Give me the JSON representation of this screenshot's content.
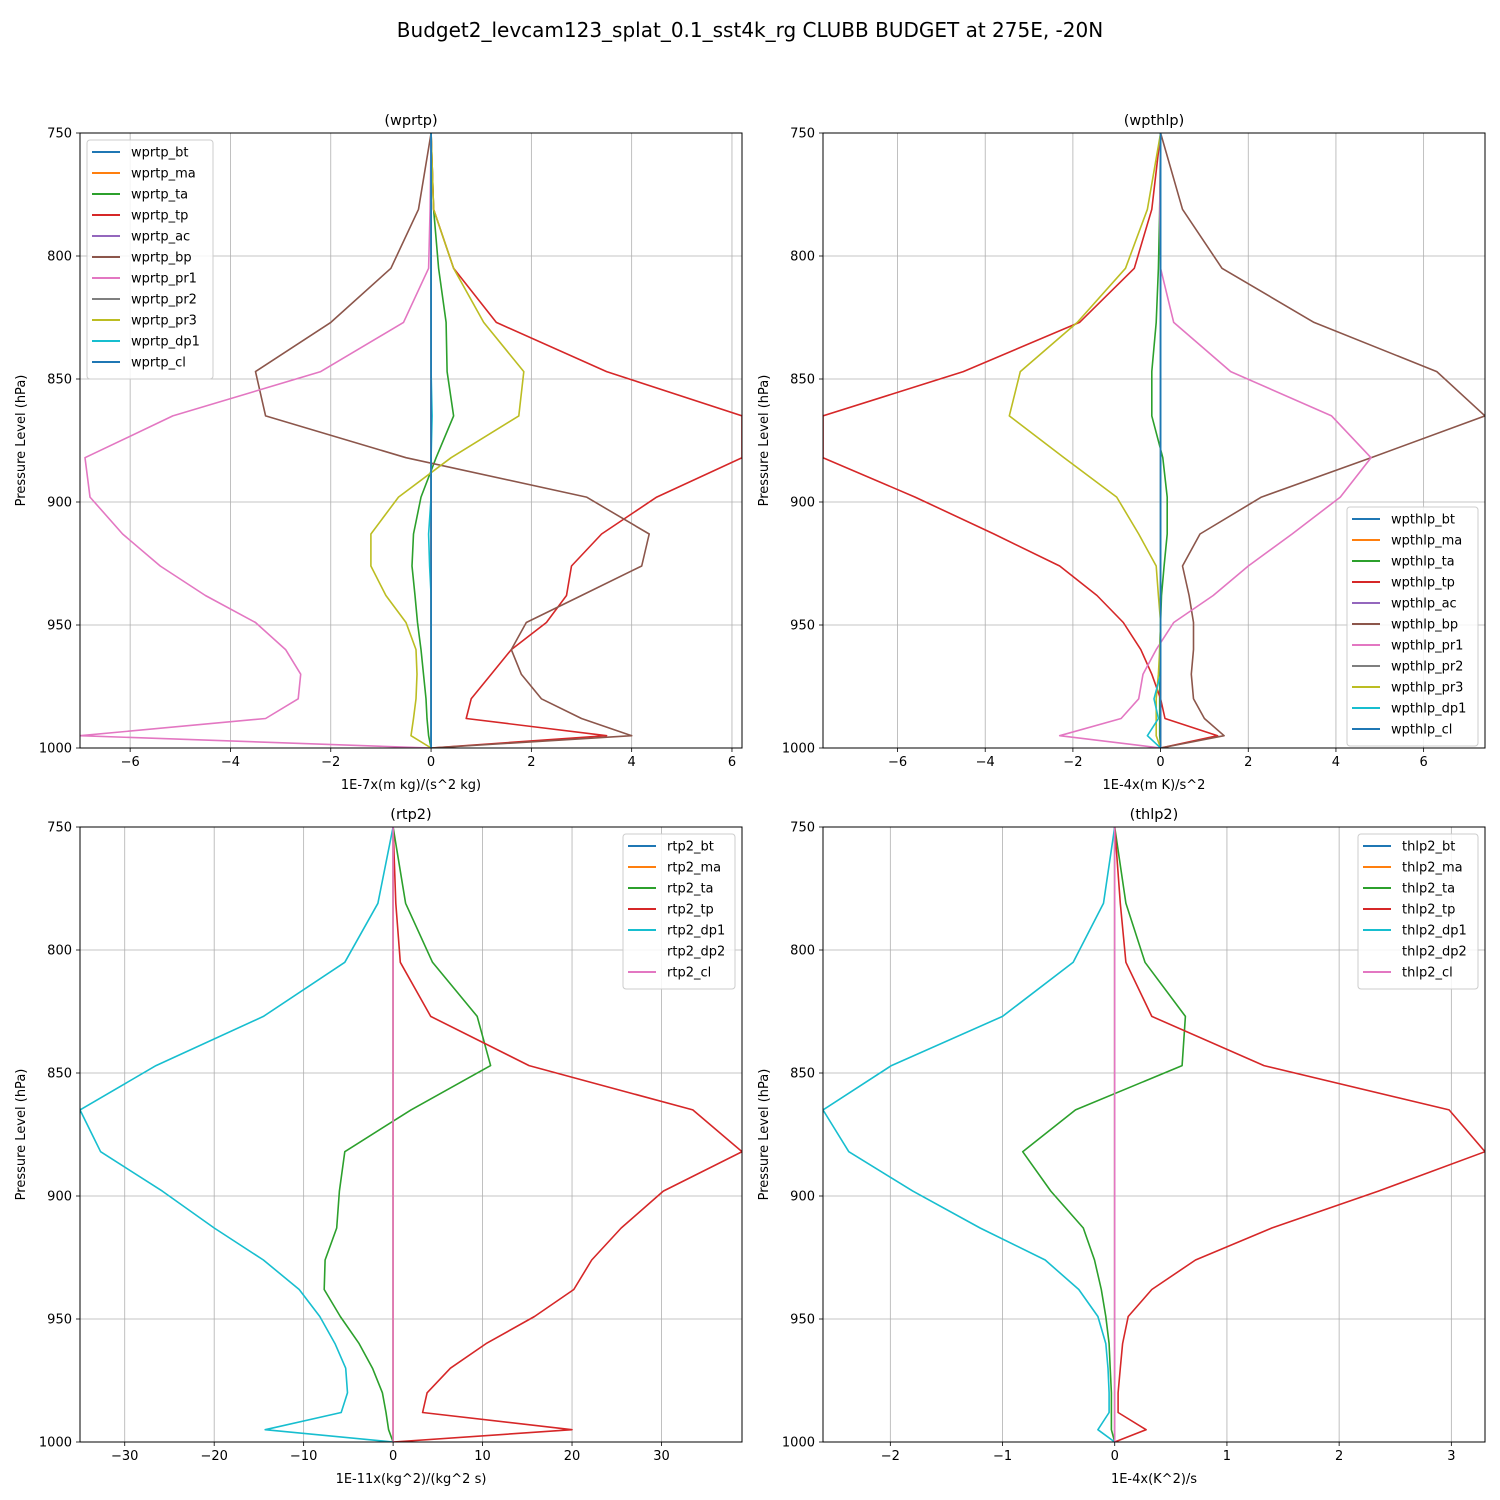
{
  "figure": {
    "title": "Budget2_levcam123_splat_0.1_sst4k_rg CLUBB BUDGET at 275E, -20N"
  },
  "colors": {
    "bt": "#1f77b4",
    "ma": "#ff7f0e",
    "ta": "#2ca02c",
    "tp": "#d62728",
    "ac": "#9467bd",
    "bp": "#8c564b",
    "pr1": "#e377c2",
    "pr2": "#7f7f7f",
    "pr3": "#bcbd22",
    "dp1": "#17becf",
    "cl": "#1f77b4",
    "grid": "#b0b0b0",
    "axes": "#000000"
  },
  "chart_data": [
    {
      "type": "line",
      "title": "(wprtp)",
      "xlabel": "1E-7x(m kg)/(s^2 kg)",
      "ylabel": "Pressure Level (hPa)",
      "xlim": [
        -7.0,
        6.2
      ],
      "ylim": [
        1000,
        750
      ],
      "xticks": [
        -6,
        -4,
        -2,
        0,
        2,
        4,
        6
      ],
      "yticks": [
        750,
        800,
        850,
        900,
        950,
        1000
      ],
      "grid": true,
      "legend_position": "top-left",
      "levels": [
        750,
        781,
        805,
        827,
        847,
        865,
        882,
        898,
        913,
        926,
        938,
        949,
        960,
        970,
        980,
        988,
        995,
        1000
      ],
      "series": [
        {
          "name": "wprtp_bt",
          "color": "bt",
          "values": [
            0,
            0,
            0,
            0,
            0,
            0,
            0,
            0,
            0,
            0,
            0,
            0,
            0,
            0,
            0,
            0,
            0,
            0
          ]
        },
        {
          "name": "wprtp_ma",
          "color": "ma",
          "values": [
            0,
            0,
            0,
            0,
            0,
            0,
            0,
            0,
            0,
            0,
            0,
            0,
            0,
            0,
            0,
            0,
            0,
            0
          ]
        },
        {
          "name": "wprtp_ta",
          "color": "ta",
          "values": [
            0,
            0.05,
            0.15,
            0.3,
            0.32,
            0.45,
            0.1,
            -0.2,
            -0.35,
            -0.38,
            -0.32,
            -0.27,
            -0.2,
            -0.15,
            -0.1,
            -0.08,
            -0.05,
            0
          ]
        },
        {
          "name": "wprtp_tp",
          "color": "tp",
          "values": [
            0,
            0.05,
            0.45,
            1.3,
            3.5,
            6.2,
            6.2,
            4.5,
            3.4,
            2.8,
            2.7,
            2.3,
            1.6,
            1.2,
            0.8,
            0.7,
            3.5,
            0
          ]
        },
        {
          "name": "wprtp_ac",
          "color": "ac",
          "values": [
            0,
            0,
            0,
            0,
            0,
            0,
            0,
            0,
            0,
            0,
            0,
            0,
            0,
            0,
            0,
            0,
            0,
            0
          ]
        },
        {
          "name": "wprtp_bp",
          "color": "bp",
          "values": [
            0,
            -0.25,
            -0.8,
            -2.0,
            -3.5,
            -3.3,
            -0.5,
            3.1,
            4.35,
            4.2,
            3.0,
            1.9,
            1.6,
            1.8,
            2.2,
            3.0,
            4.0,
            0
          ]
        },
        {
          "name": "wprtp_pr1",
          "color": "pr1",
          "values": [
            0,
            -0.02,
            -0.05,
            -0.55,
            -2.2,
            -5.15,
            -6.9,
            -6.8,
            -6.15,
            -5.4,
            -4.5,
            -3.5,
            -2.9,
            -2.6,
            -2.65,
            -3.3,
            -7.0,
            0
          ]
        },
        {
          "name": "wprtp_pr2",
          "color": "pr2",
          "values": [
            0,
            0,
            0,
            0,
            0,
            0,
            0,
            0,
            0,
            0,
            0,
            0,
            0,
            0,
            0,
            0,
            0,
            0
          ]
        },
        {
          "name": "wprtp_pr3",
          "color": "pr3",
          "values": [
            0,
            0.05,
            0.45,
            1.05,
            1.85,
            1.75,
            0.4,
            -0.65,
            -1.2,
            -1.2,
            -0.9,
            -0.5,
            -0.3,
            -0.28,
            -0.3,
            -0.35,
            -0.4,
            0
          ]
        },
        {
          "name": "wprtp_dp1",
          "color": "dp1",
          "values": [
            0,
            0,
            0,
            0,
            0,
            0.02,
            0,
            0,
            -0.05,
            -0.03,
            0,
            0,
            0,
            0,
            0,
            0,
            0,
            0
          ]
        },
        {
          "name": "wprtp_cl",
          "color": "cl",
          "values": [
            0,
            0,
            0,
            0,
            0,
            0,
            0,
            0,
            0,
            0,
            0,
            0,
            0,
            0,
            0,
            0,
            0,
            0
          ]
        }
      ]
    },
    {
      "type": "line",
      "title": "(wpthlp)",
      "xlabel": "1E-4x(m K)/s^2",
      "ylabel": "Pressure Level (hPa)",
      "xlim": [
        -7.7,
        7.4
      ],
      "ylim": [
        1000,
        750
      ],
      "xticks": [
        -6,
        -4,
        -2,
        0,
        2,
        4,
        6
      ],
      "yticks": [
        750,
        800,
        850,
        900,
        950,
        1000
      ],
      "grid": true,
      "legend_position": "bottom-right",
      "levels": [
        750,
        781,
        805,
        827,
        847,
        865,
        882,
        898,
        913,
        926,
        938,
        949,
        960,
        970,
        980,
        988,
        995,
        1000
      ],
      "series": [
        {
          "name": "wpthlp_bt",
          "color": "bt",
          "values": [
            0,
            0,
            0,
            0,
            0,
            0,
            0,
            0,
            0,
            0,
            0,
            0,
            0,
            0,
            0,
            0,
            0,
            0
          ]
        },
        {
          "name": "wpthlp_ma",
          "color": "ma",
          "values": [
            0,
            0,
            0,
            0,
            0,
            0,
            0,
            0,
            0,
            0,
            0,
            0,
            0,
            0,
            0,
            0,
            0,
            0
          ]
        },
        {
          "name": "wpthlp_ta",
          "color": "ta",
          "values": [
            0,
            -0.02,
            -0.05,
            -0.1,
            -0.2,
            -0.2,
            0.05,
            0.15,
            0.15,
            0.08,
            0.02,
            0,
            -0.02,
            -0.02,
            -0.02,
            -0.02,
            -0.02,
            0
          ]
        },
        {
          "name": "wpthlp_tp",
          "color": "tp",
          "values": [
            0,
            -0.2,
            -0.6,
            -1.85,
            -4.5,
            -7.7,
            -7.7,
            -5.6,
            -3.8,
            -2.3,
            -1.45,
            -0.85,
            -0.45,
            -0.2,
            0,
            0.1,
            1.3,
            0
          ]
        },
        {
          "name": "wpthlp_ac",
          "color": "ac",
          "values": [
            0,
            0,
            0,
            0,
            0,
            0,
            0,
            0,
            0,
            0,
            0,
            0,
            0,
            0,
            0,
            0,
            0,
            0
          ]
        },
        {
          "name": "wpthlp_bp",
          "color": "bp",
          "values": [
            0,
            0.5,
            1.4,
            3.5,
            6.3,
            7.4,
            4.8,
            2.3,
            0.9,
            0.5,
            0.65,
            0.75,
            0.75,
            0.7,
            0.75,
            1.0,
            1.45,
            0
          ]
        },
        {
          "name": "wpthlp_pr1",
          "color": "pr1",
          "values": [
            0,
            -0.02,
            0,
            0.3,
            1.6,
            3.9,
            4.8,
            4.1,
            3.0,
            2.0,
            1.2,
            0.3,
            -0.1,
            -0.4,
            -0.5,
            -0.9,
            -2.3,
            0
          ]
        },
        {
          "name": "wpthlp_pr2",
          "color": "pr2",
          "values": [
            0,
            0,
            0,
            0,
            0,
            0,
            0,
            0,
            0,
            0,
            0,
            0,
            0,
            0,
            0,
            0,
            0,
            0
          ]
        },
        {
          "name": "wpthlp_pr3",
          "color": "pr3",
          "values": [
            0,
            -0.3,
            -0.8,
            -1.9,
            -3.2,
            -3.45,
            -2.2,
            -1.0,
            -0.5,
            -0.1,
            -0.05,
            0,
            -0.02,
            -0.05,
            -0.1,
            -0.1,
            -0.1,
            0
          ]
        },
        {
          "name": "wpthlp_dp1",
          "color": "dp1",
          "values": [
            0,
            0,
            0,
            0,
            0,
            0,
            0,
            0,
            0,
            0,
            0,
            0,
            0,
            0,
            -0.15,
            -0.05,
            -0.3,
            0
          ]
        },
        {
          "name": "wpthlp_cl",
          "color": "cl",
          "values": [
            0,
            0,
            0,
            0,
            0,
            0,
            0,
            0,
            0,
            0,
            0,
            0,
            0,
            0,
            0,
            0,
            0,
            0
          ]
        }
      ]
    },
    {
      "type": "line",
      "title": "(rtp2)",
      "xlabel": "1E-11x(kg^2)/(kg^2 s)",
      "ylabel": "Pressure Level (hPa)",
      "xlim": [
        -35,
        39
      ],
      "ylim": [
        1000,
        750
      ],
      "xticks": [
        -30,
        -20,
        -10,
        0,
        10,
        20,
        30
      ],
      "yticks": [
        750,
        800,
        850,
        900,
        950,
        1000
      ],
      "grid": true,
      "legend_position": "top-right",
      "levels": [
        750,
        781,
        805,
        827,
        847,
        865,
        882,
        898,
        913,
        926,
        938,
        949,
        960,
        970,
        980,
        988,
        995,
        1000
      ],
      "series": [
        {
          "name": "rtp2_bt",
          "color": "bt",
          "values": [
            0,
            0,
            0,
            0,
            0,
            0,
            0,
            0,
            0,
            0,
            0,
            0,
            0,
            0,
            0,
            0,
            0,
            0
          ]
        },
        {
          "name": "rtp2_ma",
          "color": "ma",
          "values": [
            0,
            0,
            0,
            0,
            0,
            0,
            0,
            0,
            0,
            0,
            0,
            0,
            0,
            0,
            0,
            0,
            0,
            0
          ]
        },
        {
          "name": "rtp2_ta",
          "color": "ta",
          "values": [
            0,
            1.4,
            4.4,
            9.4,
            10.9,
            2.0,
            -5.4,
            -6.0,
            -6.3,
            -7.6,
            -7.7,
            -5.9,
            -3.8,
            -2.3,
            -1.2,
            -0.8,
            -0.5,
            0
          ]
        },
        {
          "name": "rtp2_tp",
          "color": "tp",
          "values": [
            0,
            0.3,
            0.8,
            4.2,
            15.2,
            33.5,
            39.0,
            30.2,
            25.5,
            22.2,
            20.2,
            15.8,
            10.4,
            6.4,
            3.8,
            3.3,
            20.0,
            0
          ]
        },
        {
          "name": "rtp2_dp1",
          "color": "dp1",
          "values": [
            0,
            -1.7,
            -5.4,
            -14.5,
            -26.5,
            -35.0,
            -32.7,
            -25.8,
            -20.0,
            -14.5,
            -10.5,
            -8.2,
            -6.5,
            -5.3,
            -5.1,
            -5.8,
            -14.3,
            0
          ]
        },
        {
          "name": "rtp2_dp2",
          "color": "dp2",
          "values": [
            0,
            0.3,
            0.4,
            0.6,
            0.5,
            -1.1,
            -1.2,
            -0.2,
            0.2,
            -0.3,
            -1.7,
            -1.9,
            0,
            1.6,
            2.9,
            3.3,
            -5.9,
            0
          ]
        },
        {
          "name": "rtp2_cl",
          "color": "cl2",
          "values": [
            0,
            0,
            0,
            0,
            0,
            0,
            0,
            0,
            0,
            0,
            0,
            0,
            0,
            0,
            0,
            0,
            0,
            0
          ]
        }
      ]
    },
    {
      "type": "line",
      "title": "(thlp2)",
      "xlabel": "1E-4x(K^2)/s",
      "ylabel": "Pressure Level (hPa)",
      "xlim": [
        -2.6,
        3.3
      ],
      "ylim": [
        1000,
        750
      ],
      "xticks": [
        -2,
        -1,
        0,
        1,
        2,
        3
      ],
      "yticks": [
        750,
        800,
        850,
        900,
        950,
        1000
      ],
      "grid": true,
      "legend_position": "top-right",
      "levels": [
        750,
        781,
        805,
        827,
        847,
        865,
        882,
        898,
        913,
        926,
        938,
        949,
        960,
        970,
        980,
        988,
        995,
        1000
      ],
      "series": [
        {
          "name": "thlp2_bt",
          "color": "bt",
          "values": [
            0,
            0,
            0,
            0,
            0,
            0,
            0,
            0,
            0,
            0,
            0,
            0,
            0,
            0,
            0,
            0,
            0,
            0
          ]
        },
        {
          "name": "thlp2_ma",
          "color": "ma",
          "values": [
            0,
            0,
            0,
            0,
            0,
            0,
            0,
            0,
            0,
            0,
            0,
            0,
            0,
            0,
            0,
            0,
            0,
            0
          ]
        },
        {
          "name": "thlp2_ta",
          "color": "ta",
          "values": [
            0,
            0.1,
            0.27,
            0.63,
            0.6,
            -0.35,
            -0.82,
            -0.57,
            -0.28,
            -0.18,
            -0.12,
            -0.08,
            -0.05,
            -0.04,
            -0.03,
            -0.03,
            -0.03,
            0
          ]
        },
        {
          "name": "thlp2_tp",
          "color": "tp",
          "values": [
            0,
            0.05,
            0.1,
            0.33,
            1.33,
            2.98,
            3.3,
            2.35,
            1.4,
            0.72,
            0.33,
            0.12,
            0.07,
            0.05,
            0.03,
            0.03,
            0.28,
            0
          ]
        },
        {
          "name": "thlp2_dp1",
          "color": "dp1",
          "values": [
            0,
            -0.1,
            -0.37,
            -1.0,
            -1.99,
            -2.6,
            -2.37,
            -1.8,
            -1.2,
            -0.62,
            -0.32,
            -0.15,
            -0.08,
            -0.06,
            -0.05,
            -0.05,
            -0.15,
            0
          ]
        },
        {
          "name": "thlp2_dp2",
          "color": "dp2",
          "values": [
            0,
            0.02,
            0.03,
            0.04,
            0.01,
            -0.12,
            -0.14,
            -0.07,
            -0.02,
            0.04,
            0.06,
            0.06,
            0.04,
            0.02,
            0,
            0,
            -0.13,
            0
          ]
        },
        {
          "name": "thlp2_cl",
          "color": "cl2",
          "values": [
            0,
            0,
            0,
            0,
            0,
            0,
            0,
            0,
            0,
            0,
            0,
            0,
            0,
            0,
            0,
            0,
            0,
            0
          ]
        }
      ]
    }
  ]
}
